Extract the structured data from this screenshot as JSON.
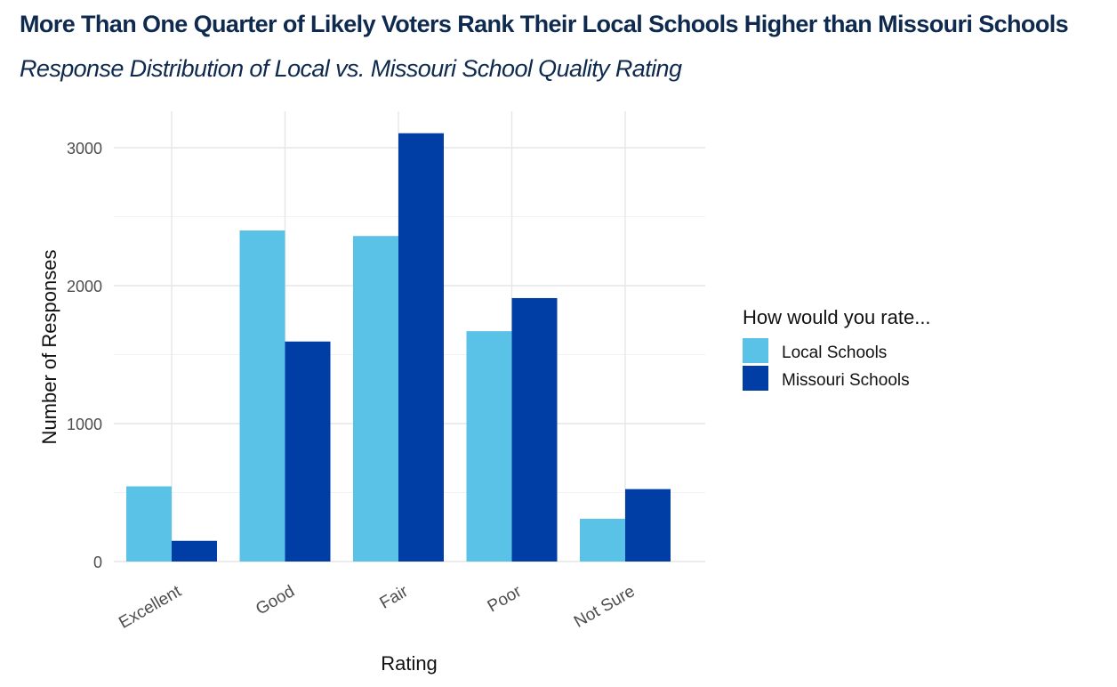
{
  "chart_data": {
    "type": "bar",
    "title": "More Than One Quarter of Likely Voters Rank Their Local Schools Higher than Missouri Schools",
    "subtitle": "Response Distribution of Local vs. Missouri School Quality Rating",
    "xlabel": "Rating",
    "ylabel": "Number of Responses",
    "categories": [
      "Excellent",
      "Good",
      "Fair",
      "Poor",
      "Not Sure"
    ],
    "yticks": [
      0,
      1000,
      2000,
      3000
    ],
    "ylim": [
      0,
      3150
    ],
    "grid": true,
    "legend": {
      "title": "How would you rate...",
      "placement": "right"
    },
    "series": [
      {
        "name": "Local Schools",
        "color": "#5bc2e7",
        "values": [
          545,
          2400,
          2360,
          1670,
          310
        ]
      },
      {
        "name": "Missouri Schools",
        "color": "#003da5",
        "values": [
          150,
          1595,
          3105,
          1910,
          525
        ]
      }
    ]
  }
}
